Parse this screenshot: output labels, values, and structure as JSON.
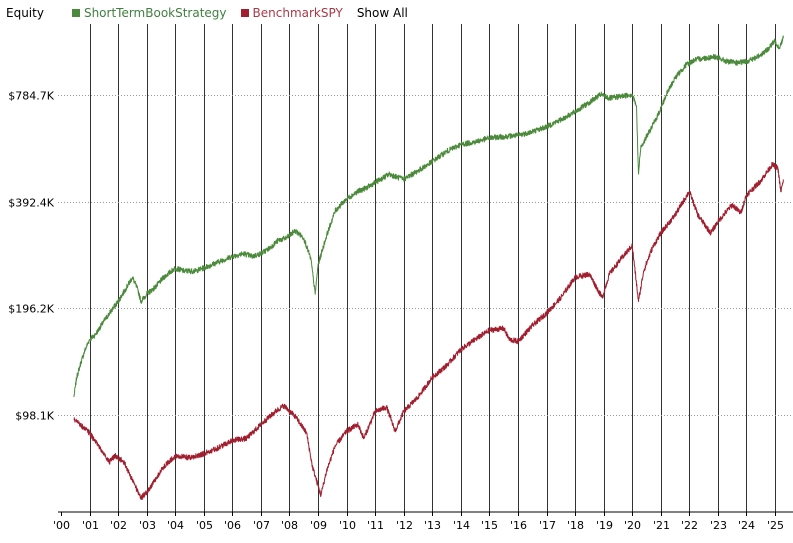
{
  "header": {
    "title": "Equity",
    "show_all_label": "Show All"
  },
  "colors": {
    "strategy": "#4a8a3a",
    "benchmark": "#a01e2e",
    "strategy_label": "#3f7f3f",
    "benchmark_label": "#a83a46",
    "vgrid": "#333333",
    "hgrid": "#999999"
  },
  "chart_data": {
    "type": "line",
    "x_ticks": [
      "'00",
      "'01",
      "'02",
      "'03",
      "'04",
      "'05",
      "'06",
      "'07",
      "'08",
      "'09",
      "'10",
      "'11",
      "'12",
      "'13",
      "'14",
      "'15",
      "'16",
      "'17",
      "'18",
      "'19",
      "'20",
      "'21",
      "'22",
      "'23",
      "'24",
      "'25"
    ],
    "y_ticks": [
      "$98.1K",
      "$196.2K",
      "$392.4K",
      "$784.7K"
    ],
    "y_tick_values": [
      98100,
      196200,
      392400,
      784700
    ],
    "y_scale": "log",
    "ylim": [
      52000,
      1250000
    ],
    "xlim": [
      2000.0,
      2025.5
    ],
    "grid": "vertical lines at years, dotted horizontal at y ticks",
    "legend_position": "top",
    "series": [
      {
        "name": "ShortTermBookStrategy",
        "color_key": "strategy",
        "points": [
          [
            2000.45,
            110000
          ],
          [
            2000.55,
            125000
          ],
          [
            2000.7,
            138000
          ],
          [
            2000.85,
            150000
          ],
          [
            2001.0,
            160000
          ],
          [
            2001.2,
            165000
          ],
          [
            2001.5,
            180000
          ],
          [
            2001.8,
            195000
          ],
          [
            2002.0,
            205000
          ],
          [
            2002.3,
            225000
          ],
          [
            2002.5,
            240000
          ],
          [
            2002.7,
            220000
          ],
          [
            2002.8,
            205000
          ],
          [
            2003.0,
            215000
          ],
          [
            2003.3,
            225000
          ],
          [
            2003.6,
            240000
          ],
          [
            2004.0,
            255000
          ],
          [
            2004.3,
            250000
          ],
          [
            2004.7,
            250000
          ],
          [
            2005.0,
            255000
          ],
          [
            2005.5,
            265000
          ],
          [
            2006.0,
            275000
          ],
          [
            2006.4,
            280000
          ],
          [
            2006.7,
            275000
          ],
          [
            2007.0,
            280000
          ],
          [
            2007.3,
            290000
          ],
          [
            2007.6,
            305000
          ],
          [
            2007.9,
            310000
          ],
          [
            2008.2,
            325000
          ],
          [
            2008.5,
            310000
          ],
          [
            2008.75,
            270000
          ],
          [
            2008.9,
            215000
          ],
          [
            2009.0,
            260000
          ],
          [
            2009.3,
            315000
          ],
          [
            2009.6,
            370000
          ],
          [
            2010.0,
            400000
          ],
          [
            2010.4,
            420000
          ],
          [
            2010.7,
            430000
          ],
          [
            2011.0,
            445000
          ],
          [
            2011.5,
            470000
          ],
          [
            2011.8,
            460000
          ],
          [
            2012.0,
            455000
          ],
          [
            2012.5,
            480000
          ],
          [
            2013.0,
            510000
          ],
          [
            2013.5,
            545000
          ],
          [
            2014.0,
            570000
          ],
          [
            2014.5,
            580000
          ],
          [
            2015.0,
            595000
          ],
          [
            2015.5,
            600000
          ],
          [
            2016.0,
            605000
          ],
          [
            2016.5,
            620000
          ],
          [
            2017.0,
            640000
          ],
          [
            2017.5,
            670000
          ],
          [
            2018.0,
            705000
          ],
          [
            2018.5,
            750000
          ],
          [
            2018.9,
            790000
          ],
          [
            2019.2,
            770000
          ],
          [
            2019.6,
            780000
          ],
          [
            2020.0,
            790000
          ],
          [
            2020.15,
            730000
          ],
          [
            2020.22,
            470000
          ],
          [
            2020.3,
            560000
          ],
          [
            2020.6,
            620000
          ],
          [
            2020.9,
            690000
          ],
          [
            2021.2,
            790000
          ],
          [
            2021.5,
            880000
          ],
          [
            2021.9,
            960000
          ],
          [
            2022.2,
            990000
          ],
          [
            2022.5,
            1000000
          ],
          [
            2022.9,
            1010000
          ],
          [
            2023.3,
            980000
          ],
          [
            2023.7,
            970000
          ],
          [
            2024.0,
            980000
          ],
          [
            2024.3,
            1000000
          ],
          [
            2024.7,
            1050000
          ],
          [
            2025.0,
            1120000
          ],
          [
            2025.15,
            1070000
          ],
          [
            2025.3,
            1150000
          ]
        ]
      },
      {
        "name": "BenchmarkSPY",
        "color_key": "benchmark",
        "points": [
          [
            2000.45,
            95000
          ],
          [
            2000.6,
            93000
          ],
          [
            2000.8,
            90000
          ],
          [
            2001.0,
            87000
          ],
          [
            2001.3,
            80000
          ],
          [
            2001.7,
            72000
          ],
          [
            2001.9,
            75000
          ],
          [
            2002.2,
            72000
          ],
          [
            2002.5,
            64000
          ],
          [
            2002.8,
            57000
          ],
          [
            2003.0,
            59000
          ],
          [
            2003.3,
            64000
          ],
          [
            2003.6,
            70000
          ],
          [
            2004.0,
            75000
          ],
          [
            2004.5,
            74000
          ],
          [
            2005.0,
            76000
          ],
          [
            2005.5,
            79000
          ],
          [
            2006.0,
            83000
          ],
          [
            2006.5,
            84000
          ],
          [
            2007.0,
            92000
          ],
          [
            2007.5,
            100000
          ],
          [
            2007.8,
            104000
          ],
          [
            2008.2,
            97000
          ],
          [
            2008.6,
            87000
          ],
          [
            2008.8,
            70000
          ],
          [
            2009.1,
            58000
          ],
          [
            2009.3,
            68000
          ],
          [
            2009.6,
            80000
          ],
          [
            2010.0,
            88000
          ],
          [
            2010.4,
            92000
          ],
          [
            2010.6,
            84000
          ],
          [
            2011.0,
            100000
          ],
          [
            2011.4,
            103000
          ],
          [
            2011.7,
            88000
          ],
          [
            2012.0,
            100000
          ],
          [
            2012.5,
            110000
          ],
          [
            2013.0,
            125000
          ],
          [
            2013.5,
            135000
          ],
          [
            2014.0,
            150000
          ],
          [
            2014.5,
            160000
          ],
          [
            2015.0,
            170000
          ],
          [
            2015.5,
            172000
          ],
          [
            2015.7,
            160000
          ],
          [
            2016.0,
            158000
          ],
          [
            2016.5,
            175000
          ],
          [
            2017.0,
            190000
          ],
          [
            2017.5,
            210000
          ],
          [
            2018.0,
            240000
          ],
          [
            2018.5,
            245000
          ],
          [
            2018.95,
            210000
          ],
          [
            2019.2,
            245000
          ],
          [
            2019.6,
            270000
          ],
          [
            2020.0,
            295000
          ],
          [
            2020.22,
            205000
          ],
          [
            2020.4,
            250000
          ],
          [
            2020.7,
            290000
          ],
          [
            2021.0,
            320000
          ],
          [
            2021.5,
            360000
          ],
          [
            2022.0,
            420000
          ],
          [
            2022.3,
            360000
          ],
          [
            2022.75,
            320000
          ],
          [
            2023.0,
            345000
          ],
          [
            2023.5,
            385000
          ],
          [
            2023.8,
            365000
          ],
          [
            2024.0,
            410000
          ],
          [
            2024.5,
            450000
          ],
          [
            2024.9,
            500000
          ],
          [
            2025.1,
            490000
          ],
          [
            2025.2,
            420000
          ],
          [
            2025.3,
            450000
          ]
        ]
      }
    ]
  }
}
